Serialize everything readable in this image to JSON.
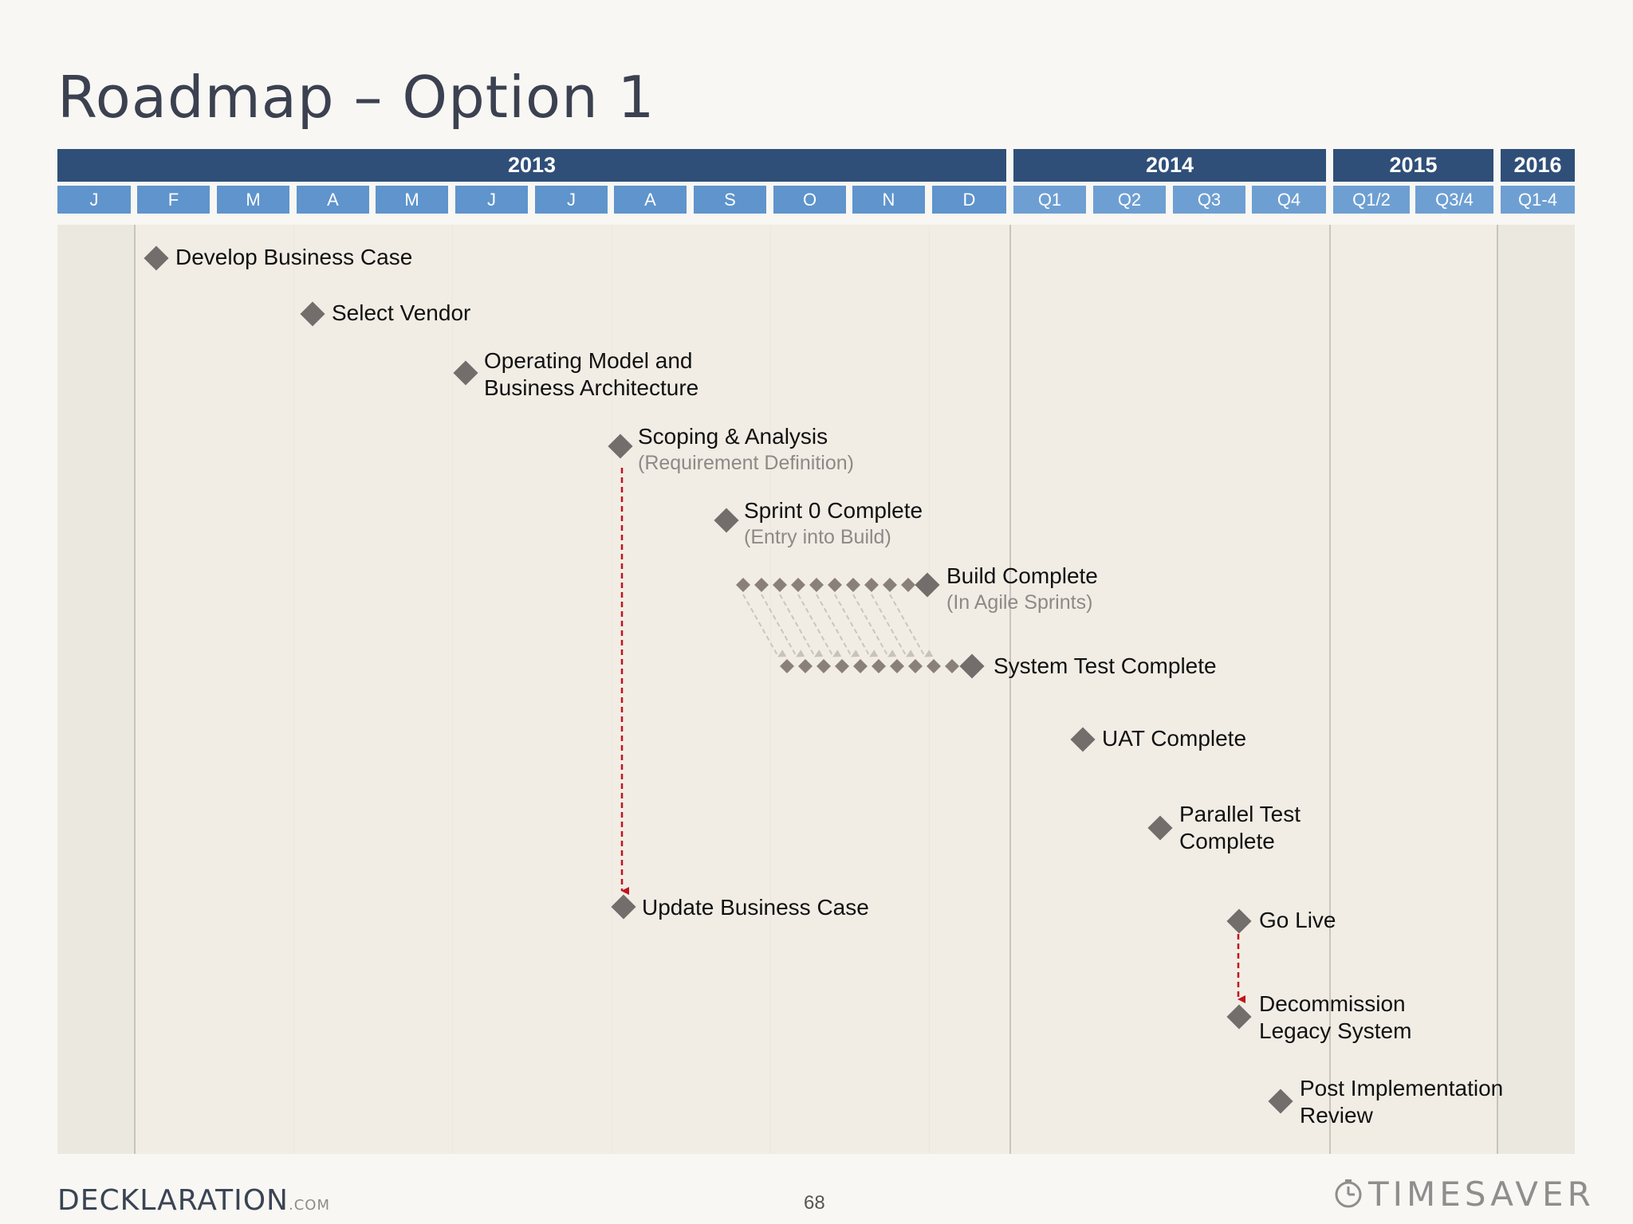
{
  "title": "Roadmap – Option 1",
  "timeline": {
    "years": [
      {
        "label": "2013",
        "name": "year-2013"
      },
      {
        "label": "2014",
        "name": "year-2014"
      },
      {
        "label": "2015",
        "name": "year-2015"
      },
      {
        "label": "2016",
        "name": "year-2016"
      }
    ],
    "periods": [
      "J",
      "F",
      "M",
      "A",
      "M",
      "J",
      "J",
      "A",
      "S",
      "O",
      "N",
      "D",
      "Q1",
      "Q2",
      "Q3",
      "Q4",
      "Q1/2",
      "Q3/4",
      "Q1-4"
    ]
  },
  "milestones": [
    {
      "line1": "Develop Business Case"
    },
    {
      "line1": "Select Vendor"
    },
    {
      "line1": "Operating Model and",
      "line2": "Business Architecture"
    },
    {
      "line1": "Scoping & Analysis",
      "line2": "(Requirement Definition)"
    },
    {
      "line1": "Sprint 0 Complete",
      "line2": "(Entry into Build)"
    },
    {
      "line1": "Build Complete",
      "line2": "(In Agile Sprints)"
    },
    {
      "line1": "System Test Complete"
    },
    {
      "line1": "UAT Complete"
    },
    {
      "line1": "Parallel Test",
      "line2": "Complete"
    },
    {
      "line1": "Update Business Case"
    },
    {
      "line1": "Go Live"
    },
    {
      "line1": "Decommission",
      "line2": "Legacy System"
    },
    {
      "line1": "Post Implementation",
      "line2": "Review"
    }
  ],
  "colors": {
    "year_bar": "#2f4f78",
    "month_bar": "#5f94cc",
    "diamond": "#736d6b",
    "dependency_arrow": "#c0141c"
  },
  "footer": {
    "brand_left": "DECKLARATION",
    "brand_left_suffix": ".COM",
    "page_number": "68",
    "brand_right": "TIMESAVER",
    "brand_right_icon": "clock-icon"
  }
}
